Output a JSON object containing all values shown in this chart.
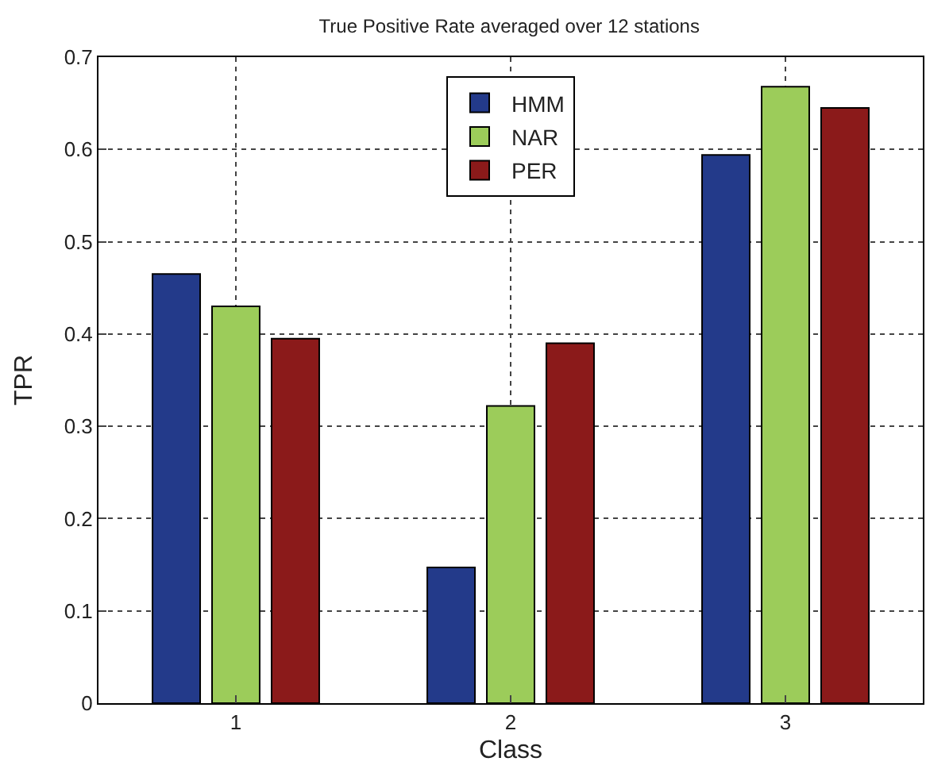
{
  "chart_data": {
    "type": "bar",
    "title": "True Positive Rate averaged over 12 stations",
    "xlabel": "Class",
    "ylabel": "TPR",
    "categories": [
      "1",
      "2",
      "3"
    ],
    "series": [
      {
        "name": "HMM",
        "color": "#233a8a",
        "values": [
          0.465,
          0.147,
          0.594
        ]
      },
      {
        "name": "NAR",
        "color": "#9ccc5a",
        "values": [
          0.43,
          0.322,
          0.668
        ]
      },
      {
        "name": "PER",
        "color": "#8b1a1a",
        "values": [
          0.395,
          0.39,
          0.645
        ]
      }
    ],
    "ylim": [
      0,
      0.7
    ],
    "yticks": [
      0,
      0.1,
      0.2,
      0.3,
      0.4,
      0.5,
      0.6,
      0.7
    ],
    "grid": true,
    "legend": "top"
  }
}
